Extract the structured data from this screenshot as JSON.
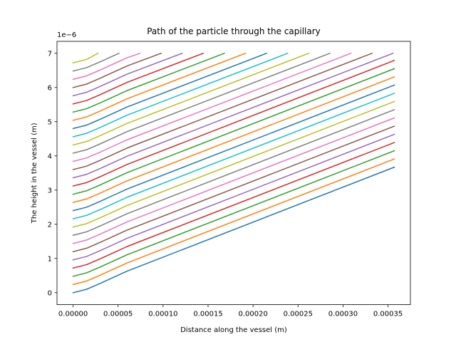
{
  "chart_data": {
    "type": "line",
    "title": "Path of the particle through the capillary",
    "xlabel": "Distance along the vessel (m)",
    "ylabel": "The height in the vessel (m)",
    "y_offset_label": "1e−6",
    "xlim": [
      -1.79e-05,
      0.0003749
    ],
    "ylim": [
      -0.35,
      7.35
    ],
    "y_scale_note": "y values in units of 1e-6 m",
    "x_ticks": [
      0.0,
      5e-05,
      0.0001,
      0.00015,
      0.0002,
      0.00025,
      0.0003,
      0.00035
    ],
    "x_tick_labels": [
      "0.00000",
      "0.00005",
      "0.00010",
      "0.00015",
      "0.00020",
      "0.00025",
      "0.00030",
      "0.00035"
    ],
    "y_ticks": [
      0,
      1,
      2,
      3,
      4,
      5,
      6,
      7
    ],
    "y_tick_labels": [
      "0",
      "1",
      "2",
      "3",
      "4",
      "5",
      "6",
      "7"
    ],
    "grid": false,
    "legend": "none",
    "palette": [
      "#1f77b4",
      "#ff7f0e",
      "#2ca02c",
      "#d62728",
      "#9467bd",
      "#8c564b",
      "#e377c2",
      "#7f7f7f",
      "#bcbd22",
      "#17becf"
    ],
    "series": [
      {
        "x": [
          0.0,
          1.5e-05,
          3e-05,
          4.5e-05,
          6e-05,
          0.000357
        ],
        "y": [
          0.0,
          0.1,
          0.27,
          0.45,
          0.63,
          3.67
        ]
      },
      {
        "x": [
          0.0,
          1.5e-05,
          3e-05,
          4.5e-05,
          6e-05,
          0.000357
        ],
        "y": [
          0.24,
          0.34,
          0.51,
          0.69,
          0.87,
          3.91
        ]
      },
      {
        "x": [
          0.0,
          1.5e-05,
          3e-05,
          4.5e-05,
          6e-05,
          0.000357
        ],
        "y": [
          0.48,
          0.58,
          0.75,
          0.93,
          1.11,
          4.15
        ]
      },
      {
        "x": [
          0.0,
          1.5e-05,
          3e-05,
          4.5e-05,
          6e-05,
          0.000357
        ],
        "y": [
          0.72,
          0.82,
          0.99,
          1.17,
          1.35,
          4.39
        ]
      },
      {
        "x": [
          0.0,
          1.5e-05,
          3e-05,
          4.5e-05,
          6e-05,
          0.000357
        ],
        "y": [
          0.96,
          1.06,
          1.23,
          1.41,
          1.59,
          4.63
        ]
      },
      {
        "x": [
          0.0,
          1.5e-05,
          3e-05,
          4.5e-05,
          6e-05,
          0.000357
        ],
        "y": [
          1.2,
          1.3,
          1.47,
          1.65,
          1.83,
          4.87
        ]
      },
      {
        "x": [
          0.0,
          1.5e-05,
          3e-05,
          4.5e-05,
          6e-05,
          0.000357
        ],
        "y": [
          1.44,
          1.54,
          1.71,
          1.89,
          2.07,
          5.11
        ]
      },
      {
        "x": [
          0.0,
          1.5e-05,
          3e-05,
          4.5e-05,
          6e-05,
          0.000357
        ],
        "y": [
          1.68,
          1.78,
          1.95,
          2.13,
          2.31,
          5.35
        ]
      },
      {
        "x": [
          0.0,
          1.5e-05,
          3e-05,
          4.5e-05,
          6e-05,
          0.000357
        ],
        "y": [
          1.92,
          2.02,
          2.19,
          2.37,
          2.55,
          5.59
        ]
      },
      {
        "x": [
          0.0,
          1.5e-05,
          3e-05,
          4.5e-05,
          6e-05,
          0.000357
        ],
        "y": [
          2.16,
          2.26,
          2.43,
          2.61,
          2.79,
          5.83
        ]
      },
      {
        "x": [
          0.0,
          1.5e-05,
          3e-05,
          4.5e-05,
          6e-05,
          0.000357
        ],
        "y": [
          2.4,
          2.5,
          2.67,
          2.85,
          3.03,
          6.07
        ]
      },
      {
        "x": [
          0.0,
          1.5e-05,
          3e-05,
          4.5e-05,
          6e-05,
          0.000357
        ],
        "y": [
          2.64,
          2.74,
          2.91,
          3.09,
          3.27,
          6.31
        ]
      },
      {
        "x": [
          0.0,
          1.5e-05,
          3e-05,
          4.5e-05,
          6e-05,
          0.000357
        ],
        "y": [
          2.88,
          2.98,
          3.15,
          3.33,
          3.51,
          6.55
        ]
      },
      {
        "x": [
          0.0,
          1.5e-05,
          3e-05,
          4.5e-05,
          6e-05,
          0.000357
        ],
        "y": [
          3.12,
          3.22,
          3.39,
          3.57,
          3.75,
          6.79
        ]
      },
      {
        "x": [
          0.0,
          1.5e-05,
          3e-05,
          4.5e-05,
          6e-05,
          0.0003555
        ],
        "y": [
          3.36,
          3.46,
          3.63,
          3.81,
          3.99,
          7.0
        ]
      },
      {
        "x": [
          0.0,
          1.5e-05,
          3e-05,
          4.5e-05,
          6e-05,
          0.0003322
        ],
        "y": [
          3.6,
          3.7,
          3.87,
          4.05,
          4.23,
          7.0
        ]
      },
      {
        "x": [
          0.0,
          1.5e-05,
          3e-05,
          4.5e-05,
          6e-05,
          0.0003087
        ],
        "y": [
          3.84,
          3.94,
          4.11,
          4.29,
          4.47,
          7.0
        ]
      },
      {
        "x": [
          0.0,
          1.5e-05,
          3e-05,
          4.5e-05,
          6e-05,
          0.0002853
        ],
        "y": [
          4.08,
          4.18,
          4.35,
          4.53,
          4.71,
          7.0
        ]
      },
      {
        "x": [
          0.0,
          1.5e-05,
          3e-05,
          4.5e-05,
          6e-05,
          0.0002618
        ],
        "y": [
          4.32,
          4.42,
          4.59,
          4.77,
          4.95,
          7.0
        ]
      },
      {
        "x": [
          0.0,
          1.5e-05,
          3e-05,
          4.5e-05,
          6e-05,
          0.0002384
        ],
        "y": [
          4.56,
          4.66,
          4.83,
          5.01,
          5.19,
          7.0
        ]
      },
      {
        "x": [
          0.0,
          1.5e-05,
          3e-05,
          4.5e-05,
          6e-05,
          0.000215
        ],
        "y": [
          4.8,
          4.9,
          5.07,
          5.25,
          5.43,
          7.0
        ]
      },
      {
        "x": [
          0.0,
          1.5e-05,
          3e-05,
          4.5e-05,
          6e-05,
          0.0001915
        ],
        "y": [
          5.04,
          5.14,
          5.31,
          5.49,
          5.67,
          7.0
        ]
      },
      {
        "x": [
          0.0,
          1.5e-05,
          3e-05,
          4.5e-05,
          6e-05,
          0.0001681
        ],
        "y": [
          5.28,
          5.38,
          5.55,
          5.73,
          5.91,
          7.0
        ]
      },
      {
        "x": [
          0.0,
          1.5e-05,
          3e-05,
          4.5e-05,
          6e-05,
          0.0001446
        ],
        "y": [
          5.52,
          5.62,
          5.79,
          5.97,
          6.15,
          7.0
        ]
      },
      {
        "x": [
          0.0,
          1.5e-05,
          3e-05,
          4.5e-05,
          6e-05,
          0.0001212
        ],
        "y": [
          5.76,
          5.86,
          6.03,
          6.21,
          6.39,
          7.0
        ]
      },
      {
        "x": [
          0.0,
          1.5e-05,
          3e-05,
          4.5e-05,
          6e-05,
          9.78e-05
        ],
        "y": [
          6.0,
          6.1,
          6.27,
          6.45,
          6.63,
          7.0
        ]
      },
      {
        "x": [
          0.0,
          1.5e-05,
          3e-05,
          4.5e-05,
          6e-05,
          7.43e-05
        ],
        "y": [
          6.24,
          6.34,
          6.51,
          6.69,
          6.87,
          7.0
        ]
      },
      {
        "x": [
          0.0,
          1.5e-05,
          3e-05,
          4.5e-05,
          5.09e-05
        ],
        "y": [
          6.48,
          6.58,
          6.75,
          6.93,
          7.0
        ]
      },
      {
        "x": [
          0.0,
          1.5e-05,
          2.75e-05
        ],
        "y": [
          6.72,
          6.82,
          7.0
        ]
      }
    ]
  }
}
